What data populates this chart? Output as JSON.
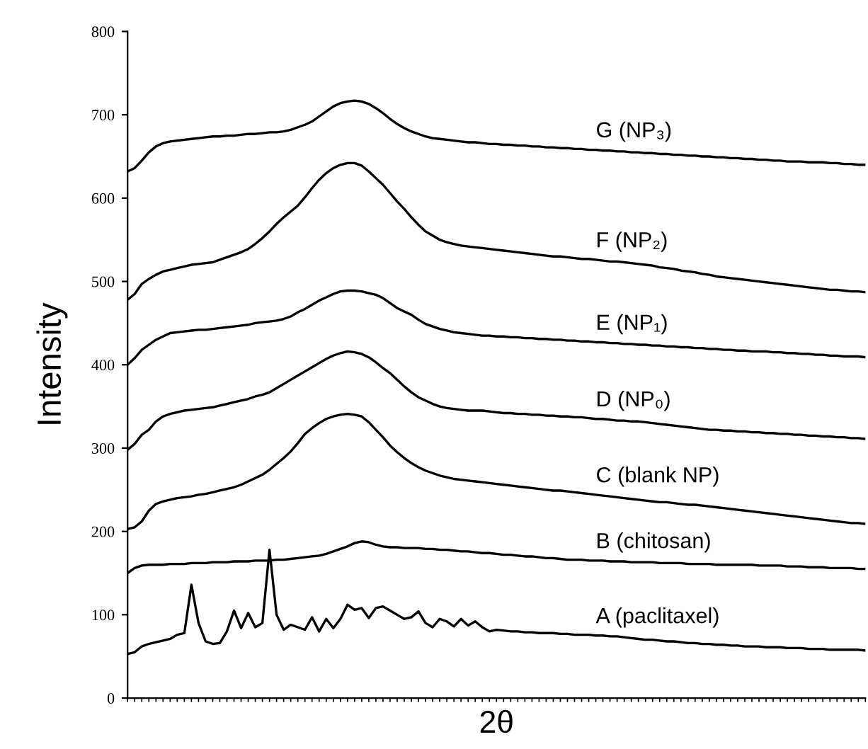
{
  "chart_data": {
    "type": "line",
    "xlabel": "2θ",
    "ylabel": "Intensity",
    "categories": [
      null,
      null,
      null,
      null,
      null,
      null,
      null,
      null,
      null,
      null,
      null,
      null,
      null,
      null,
      null,
      null,
      null,
      null,
      null,
      null,
      null,
      null,
      null,
      null,
      null,
      null,
      null,
      null,
      null,
      null,
      null,
      null,
      null,
      null,
      null,
      null,
      null,
      null,
      null,
      null,
      null,
      null,
      null,
      null,
      null,
      null,
      null,
      null,
      null,
      null,
      null,
      null,
      null,
      null,
      null,
      null,
      null,
      null,
      null,
      null,
      null,
      null,
      null,
      null,
      null,
      null,
      null,
      null,
      null,
      null,
      null,
      null,
      null,
      null,
      null,
      null,
      null,
      null,
      null,
      null,
      null,
      null,
      null,
      null,
      null,
      null,
      null,
      null,
      null,
      null,
      null,
      null,
      null,
      null,
      null,
      null,
      null,
      null,
      null,
      null,
      null,
      null,
      null,
      null,
      null
    ],
    "ylim": [
      0,
      800
    ],
    "yticks": [
      0,
      100,
      200,
      300,
      400,
      500,
      600,
      700,
      800
    ],
    "tick_labels": "y",
    "series": [
      {
        "name": "A (paclitaxel)",
        "color": "#000000",
        "values": [
          53,
          55,
          62,
          65,
          67,
          69,
          71,
          76,
          78,
          136,
          90,
          68,
          65,
          66,
          80,
          105,
          84,
          102,
          85,
          90,
          178,
          100,
          82,
          88,
          85,
          82,
          97,
          80,
          95,
          84,
          95,
          112,
          106,
          108,
          96,
          108,
          110,
          105,
          100,
          95,
          97,
          104,
          90,
          85,
          95,
          92,
          86,
          95,
          87,
          92,
          85,
          80,
          82,
          81,
          80,
          80,
          79,
          79,
          78,
          78,
          78,
          77,
          77,
          76,
          76,
          76,
          75,
          75,
          74,
          74,
          73,
          72,
          71,
          70,
          70,
          69,
          68,
          68,
          67,
          66,
          66,
          65,
          65,
          64,
          64,
          63,
          63,
          62,
          62,
          62,
          61,
          61,
          61,
          60,
          60,
          60,
          59,
          59,
          59,
          58,
          58,
          58,
          58,
          58,
          57
        ]
      },
      {
        "name": "B (chitosan)",
        "color": "#000000",
        "values": [
          150,
          156,
          159,
          160,
          160,
          160,
          161,
          161,
          161,
          162,
          162,
          162,
          163,
          163,
          163,
          164,
          164,
          164,
          165,
          165,
          165,
          166,
          166,
          167,
          168,
          169,
          170,
          171,
          173,
          176,
          179,
          182,
          186,
          188,
          187,
          184,
          182,
          181,
          181,
          180,
          180,
          180,
          179,
          179,
          178,
          178,
          177,
          176,
          176,
          175,
          174,
          174,
          173,
          172,
          172,
          171,
          170,
          170,
          169,
          168,
          168,
          167,
          166,
          166,
          166,
          165,
          165,
          165,
          164,
          164,
          164,
          163,
          163,
          163,
          163,
          162,
          162,
          162,
          162,
          161,
          161,
          161,
          161,
          160,
          160,
          160,
          160,
          160,
          160,
          159,
          159,
          159,
          159,
          158,
          158,
          158,
          157,
          157,
          157,
          156,
          156,
          156,
          156,
          155,
          155
        ]
      },
      {
        "name": "C (blank NP)",
        "color": "#000000",
        "values": [
          203,
          205,
          212,
          225,
          233,
          236,
          238,
          240,
          241,
          242,
          244,
          245,
          247,
          249,
          251,
          253,
          256,
          260,
          264,
          268,
          274,
          281,
          288,
          296,
          306,
          317,
          324,
          330,
          335,
          338,
          340,
          341,
          340,
          338,
          331,
          322,
          313,
          303,
          295,
          288,
          282,
          277,
          273,
          270,
          267,
          265,
          263,
          262,
          261,
          260,
          259,
          258,
          257,
          256,
          255,
          254,
          253,
          252,
          251,
          250,
          249,
          249,
          248,
          247,
          246,
          245,
          244,
          243,
          242,
          241,
          240,
          239,
          238,
          237,
          236,
          235,
          235,
          234,
          233,
          232,
          232,
          231,
          230,
          229,
          228,
          227,
          226,
          225,
          224,
          223,
          222,
          221,
          220,
          219,
          218,
          217,
          216,
          215,
          214,
          213,
          212,
          211,
          210,
          210,
          209
        ]
      },
      {
        "name": "D (NP₀)",
        "color": "#000000",
        "values": [
          298,
          305,
          316,
          322,
          332,
          338,
          341,
          343,
          345,
          346,
          347,
          348,
          349,
          351,
          353,
          355,
          357,
          359,
          362,
          364,
          367,
          372,
          377,
          382,
          387,
          392,
          397,
          402,
          407,
          411,
          414,
          416,
          415,
          413,
          409,
          403,
          396,
          390,
          382,
          374,
          367,
          361,
          357,
          353,
          350,
          348,
          347,
          346,
          345,
          345,
          345,
          344,
          343,
          342,
          342,
          341,
          341,
          340,
          340,
          339,
          339,
          338,
          338,
          337,
          337,
          336,
          335,
          335,
          334,
          333,
          333,
          332,
          332,
          331,
          330,
          329,
          328,
          327,
          326,
          325,
          324,
          323,
          322,
          322,
          321,
          321,
          320,
          320,
          319,
          319,
          318,
          318,
          317,
          317,
          316,
          316,
          315,
          315,
          314,
          314,
          313,
          313,
          312,
          312,
          311
        ]
      },
      {
        "name": "E (NP₁)",
        "color": "#000000",
        "values": [
          400,
          408,
          418,
          424,
          430,
          434,
          438,
          439,
          440,
          441,
          442,
          442,
          443,
          444,
          445,
          446,
          447,
          448,
          450,
          451,
          452,
          453,
          455,
          458,
          463,
          467,
          472,
          477,
          481,
          485,
          488,
          489,
          489,
          488,
          486,
          484,
          480,
          474,
          468,
          464,
          460,
          454,
          449,
          446,
          443,
          441,
          439,
          438,
          437,
          436,
          435,
          435,
          434,
          434,
          433,
          433,
          432,
          432,
          431,
          431,
          430,
          430,
          429,
          429,
          428,
          428,
          427,
          427,
          426,
          426,
          425,
          425,
          424,
          424,
          423,
          423,
          422,
          422,
          421,
          421,
          420,
          420,
          419,
          419,
          418,
          418,
          417,
          417,
          416,
          416,
          416,
          415,
          415,
          414,
          414,
          413,
          413,
          412,
          412,
          411,
          411,
          410,
          410,
          410,
          409
        ]
      },
      {
        "name": "F (NP₂)",
        "color": "#000000",
        "values": [
          478,
          485,
          497,
          503,
          508,
          512,
          514,
          516,
          518,
          520,
          521,
          522,
          523,
          526,
          529,
          532,
          535,
          539,
          545,
          552,
          560,
          569,
          577,
          584,
          591,
          601,
          612,
          622,
          630,
          636,
          640,
          642,
          642,
          639,
          632,
          624,
          616,
          606,
          596,
          587,
          577,
          568,
          560,
          555,
          550,
          547,
          545,
          543,
          542,
          541,
          540,
          539,
          538,
          537,
          536,
          535,
          534,
          533,
          532,
          531,
          530,
          530,
          529,
          528,
          527,
          527,
          526,
          525,
          524,
          524,
          523,
          522,
          521,
          520,
          519,
          517,
          516,
          515,
          513,
          512,
          511,
          509,
          508,
          506,
          505,
          504,
          503,
          502,
          501,
          500,
          499,
          498,
          497,
          496,
          495,
          494,
          493,
          492,
          491,
          490,
          490,
          489,
          488,
          488,
          487
        ]
      },
      {
        "name": "G (NP₃)",
        "color": "#000000",
        "values": [
          632,
          636,
          645,
          655,
          662,
          666,
          668,
          669,
          670,
          671,
          672,
          673,
          674,
          674,
          675,
          675,
          676,
          677,
          677,
          678,
          679,
          679,
          680,
          682,
          685,
          688,
          692,
          698,
          704,
          710,
          714,
          716,
          717,
          716,
          713,
          708,
          702,
          695,
          689,
          684,
          680,
          677,
          674,
          672,
          671,
          670,
          669,
          668,
          667,
          667,
          666,
          665,
          665,
          664,
          664,
          663,
          663,
          662,
          662,
          661,
          661,
          660,
          660,
          659,
          659,
          658,
          658,
          657,
          657,
          656,
          656,
          655,
          655,
          654,
          654,
          653,
          653,
          652,
          652,
          651,
          651,
          650,
          650,
          649,
          649,
          648,
          648,
          647,
          647,
          646,
          646,
          645,
          645,
          644,
          644,
          644,
          643,
          643,
          643,
          642,
          642,
          641,
          641,
          640,
          640
        ]
      }
    ]
  }
}
